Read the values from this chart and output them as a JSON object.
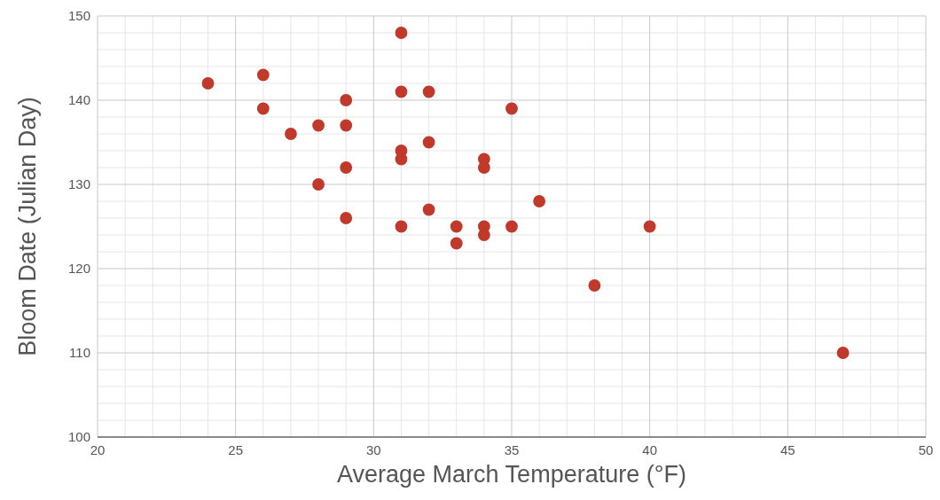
{
  "chart_data": {
    "type": "scatter",
    "xlabel": "Average March Temperature (°F)",
    "ylabel": "Bloom Date (Julian Day)",
    "x": [
      24,
      26,
      26,
      27,
      28,
      28,
      29,
      29,
      29,
      29,
      31,
      31,
      31,
      31,
      31,
      32,
      32,
      32,
      33,
      33,
      34,
      34,
      34,
      34,
      35,
      35,
      36,
      38,
      40,
      47
    ],
    "series": [
      {
        "color": "#c0392b",
        "values": [
          142,
          143,
          139,
          136,
          137,
          130,
          140,
          137,
          132,
          126,
          148,
          141,
          134,
          133,
          125,
          141,
          135,
          127,
          125,
          123,
          133,
          132,
          125,
          124,
          139,
          125,
          128,
          118,
          125,
          110
        ]
      }
    ],
    "xlim": [
      20,
      50
    ],
    "xticks": [
      20,
      25,
      30,
      35,
      40,
      45,
      50
    ],
    "ylim": [
      100,
      150
    ],
    "yticks": [
      100,
      110,
      120,
      130,
      140,
      150
    ],
    "grid": true,
    "marker": "circle"
  }
}
